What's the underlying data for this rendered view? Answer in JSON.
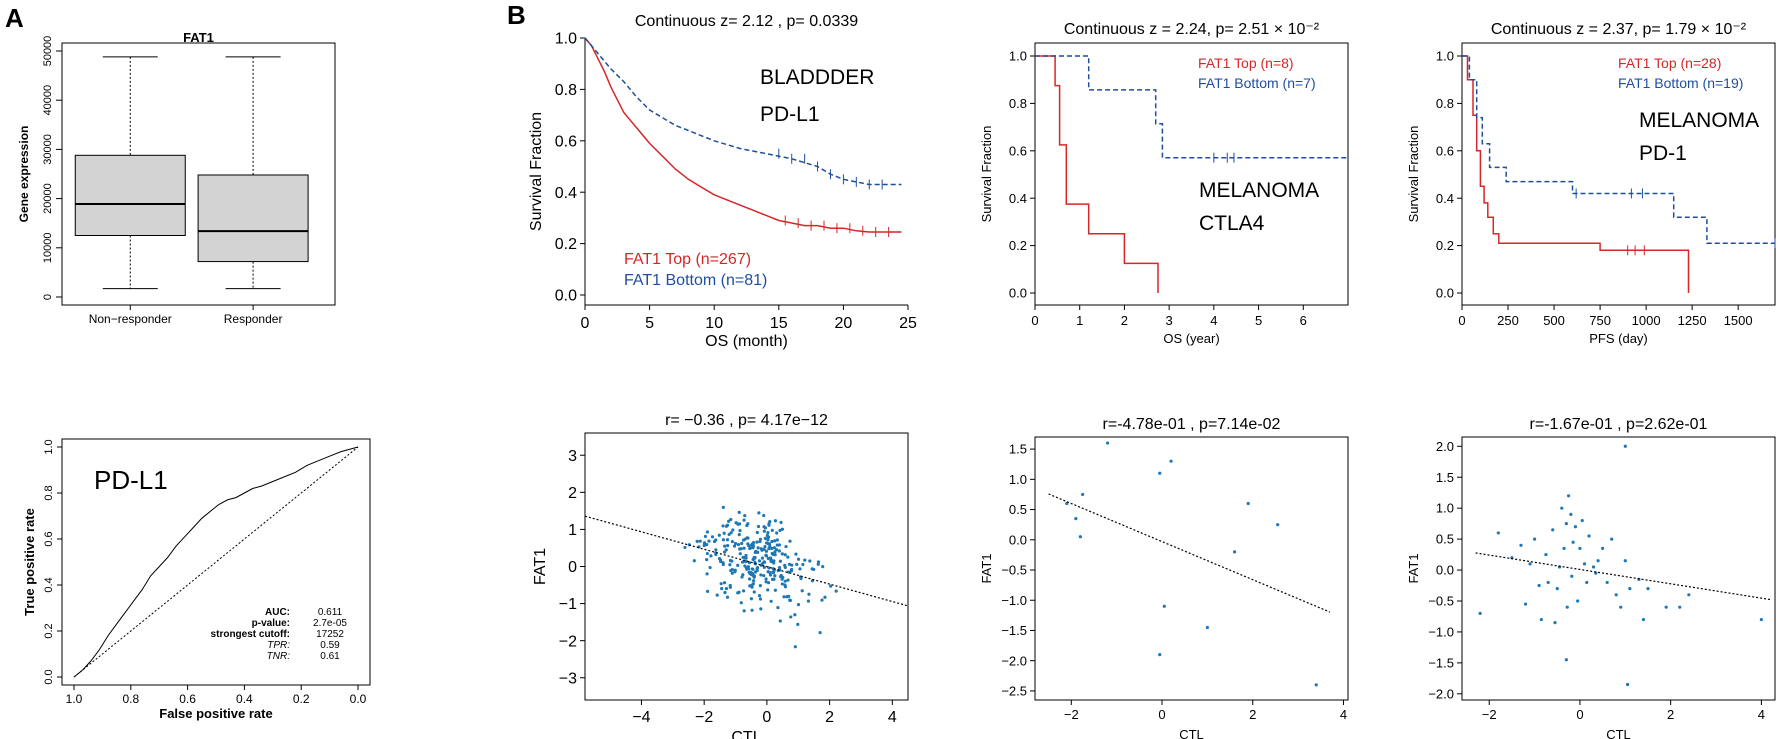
{
  "colors": {
    "red": "#d62728",
    "blue": "#1f4e9e",
    "scatter": "#1f77b4",
    "box": "#d3d3d3"
  },
  "panel_labels": {
    "a": "A",
    "b": "B"
  },
  "chart_data": [
    {
      "id": "boxplot",
      "type": "box",
      "title": "FAT1",
      "ylabel": "Gene expression",
      "ylim": [
        0,
        50000
      ],
      "yticks": [
        0,
        10000,
        20000,
        30000,
        40000,
        50000
      ],
      "categories": [
        "Non−responder",
        "Responder"
      ],
      "boxes": [
        {
          "min": 1700,
          "q1": 12500,
          "median": 18900,
          "q3": 28800,
          "max": 48800
        },
        {
          "min": 1700,
          "q1": 7200,
          "median": 13400,
          "q3": 24800,
          "max": 48800
        }
      ]
    },
    {
      "id": "roc",
      "type": "line",
      "annotation": "PD-L1",
      "xlabel": "False positive rate",
      "ylabel": "True positive rate",
      "xticks": [
        "1.0",
        "0.8",
        "0.6",
        "0.4",
        "0.2",
        "0.0"
      ],
      "yticks": [
        "0.0",
        "0.2",
        "0.4",
        "0.6",
        "0.8",
        "1.0"
      ],
      "curve": [
        [
          0,
          0
        ],
        [
          0.03,
          0.03
        ],
        [
          0.06,
          0.07
        ],
        [
          0.09,
          0.12
        ],
        [
          0.12,
          0.18
        ],
        [
          0.15,
          0.23
        ],
        [
          0.18,
          0.28
        ],
        [
          0.21,
          0.33
        ],
        [
          0.24,
          0.38
        ],
        [
          0.27,
          0.44
        ],
        [
          0.3,
          0.48
        ],
        [
          0.33,
          0.52
        ],
        [
          0.36,
          0.57
        ],
        [
          0.39,
          0.61
        ],
        [
          0.42,
          0.65
        ],
        [
          0.45,
          0.69
        ],
        [
          0.48,
          0.72
        ],
        [
          0.51,
          0.75
        ],
        [
          0.54,
          0.77
        ],
        [
          0.57,
          0.78
        ],
        [
          0.6,
          0.8
        ],
        [
          0.63,
          0.82
        ],
        [
          0.66,
          0.83
        ],
        [
          0.7,
          0.85
        ],
        [
          0.74,
          0.87
        ],
        [
          0.78,
          0.89
        ],
        [
          0.82,
          0.92
        ],
        [
          0.86,
          0.94
        ],
        [
          0.9,
          0.96
        ],
        [
          0.94,
          0.98
        ],
        [
          1,
          1
        ]
      ],
      "stats": {
        "labels": [
          "AUC:",
          "p-value:",
          "strongest cutoff:",
          "TPR:",
          "TNR:"
        ],
        "values": [
          "0.611",
          "2.7e-05",
          "17252",
          "0.59",
          "0.61"
        ]
      }
    },
    {
      "id": "km1",
      "type": "line",
      "title": "Continuous z= 2.12 , p= 0.0339",
      "xlabel": "OS (month)",
      "ylabel": "Survival Fraction",
      "xlim": [
        0,
        25
      ],
      "ylim": [
        0,
        1
      ],
      "xticks": [
        0,
        5,
        10,
        15,
        20,
        25
      ],
      "yticks": [
        "0.0",
        "0.2",
        "0.4",
        "0.6",
        "0.8",
        "1.0"
      ],
      "annotations": [
        "BLADDDER",
        "PD-L1"
      ],
      "series": [
        {
          "name": "FAT1 Top (n=267)",
          "color": "red",
          "dash": false,
          "x": [
            0,
            0.5,
            1,
            1.5,
            2,
            2.5,
            3,
            4,
            5,
            6,
            7,
            8,
            9,
            10,
            11,
            12,
            13,
            14,
            15,
            16,
            17,
            18,
            19,
            20,
            21,
            22,
            23,
            24.5
          ],
          "y": [
            1,
            0.97,
            0.92,
            0.87,
            0.81,
            0.76,
            0.71,
            0.65,
            0.59,
            0.54,
            0.49,
            0.45,
            0.42,
            0.39,
            0.37,
            0.35,
            0.33,
            0.31,
            0.29,
            0.28,
            0.27,
            0.27,
            0.26,
            0.26,
            0.25,
            0.245,
            0.245,
            0.245
          ]
        },
        {
          "name": "FAT1 Bottom (n=81)",
          "color": "blue",
          "dash": true,
          "x": [
            0,
            1,
            2,
            3,
            4,
            5,
            6,
            7,
            8,
            9,
            10,
            12,
            14,
            16,
            18,
            19,
            20,
            21,
            22,
            24.5
          ],
          "y": [
            1,
            0.94,
            0.88,
            0.83,
            0.77,
            0.72,
            0.69,
            0.66,
            0.64,
            0.62,
            0.6,
            0.57,
            0.55,
            0.53,
            0.5,
            0.47,
            0.45,
            0.44,
            0.43,
            0.43
          ]
        }
      ]
    },
    {
      "id": "km2",
      "type": "line",
      "title": "Continuous z = 2.24, p= 2.51 × 10⁻²",
      "xlabel": "OS (year)",
      "ylabel": "Survival Fraction",
      "xlim": [
        0,
        7
      ],
      "ylim": [
        0,
        1
      ],
      "xticks": [
        0,
        1,
        2,
        3,
        4,
        5,
        6
      ],
      "yticks": [
        "0.0",
        "0.2",
        "0.4",
        "0.6",
        "0.8",
        "1.0"
      ],
      "annotations": [
        "MELANOMA",
        "CTLA4"
      ],
      "series": [
        {
          "name": "FAT1 Top (n=8)",
          "color": "red",
          "dash": false,
          "x": [
            0,
            0.45,
            0.45,
            0.55,
            0.55,
            0.7,
            0.7,
            1.2,
            1.2,
            2.0,
            2.0,
            2.75,
            2.75
          ],
          "y": [
            1,
            1,
            0.875,
            0.875,
            0.625,
            0.625,
            0.375,
            0.375,
            0.25,
            0.25,
            0.125,
            0.125,
            0
          ]
        },
        {
          "name": "FAT1 Bottom (n=7)",
          "color": "blue",
          "dash": true,
          "x": [
            0,
            1.2,
            1.2,
            2.7,
            2.7,
            2.85,
            2.85,
            7
          ],
          "y": [
            1,
            1,
            0.857,
            0.857,
            0.714,
            0.714,
            0.571,
            0.571
          ]
        }
      ]
    },
    {
      "id": "km3",
      "type": "line",
      "title": "Continuous z = 2.37, p= 1.79 × 10⁻²",
      "xlabel": "PFS (day)",
      "ylabel": "Survival Fraction",
      "xlim": [
        0,
        1700
      ],
      "ylim": [
        0,
        1
      ],
      "xticks": [
        0,
        250,
        500,
        750,
        1000,
        1250,
        1500
      ],
      "yticks": [
        "0.0",
        "0.2",
        "0.4",
        "0.6",
        "0.8",
        "1.0"
      ],
      "annotations": [
        "MELANOMA",
        "PD-1"
      ],
      "series": [
        {
          "name": "FAT1 Top (n=28)",
          "color": "red",
          "dash": false,
          "x": [
            0,
            30,
            30,
            60,
            60,
            80,
            80,
            100,
            100,
            120,
            120,
            140,
            140,
            170,
            170,
            200,
            200,
            750,
            750,
            1230,
            1230
          ],
          "y": [
            1,
            1,
            0.9,
            0.9,
            0.75,
            0.75,
            0.6,
            0.6,
            0.45,
            0.45,
            0.38,
            0.38,
            0.32,
            0.32,
            0.25,
            0.25,
            0.21,
            0.21,
            0.18,
            0.18,
            0
          ]
        },
        {
          "name": "FAT1 Bottom (n=19)",
          "color": "blue",
          "dash": true,
          "x": [
            0,
            40,
            40,
            80,
            80,
            110,
            110,
            150,
            150,
            240,
            240,
            600,
            600,
            1150,
            1150,
            1330,
            1330,
            1700
          ],
          "y": [
            1,
            1,
            0.9,
            0.9,
            0.74,
            0.74,
            0.63,
            0.63,
            0.53,
            0.53,
            0.47,
            0.47,
            0.42,
            0.42,
            0.32,
            0.32,
            0.21,
            0.21
          ]
        }
      ]
    },
    {
      "id": "sc1",
      "type": "scatter",
      "title": "r= −0.36 , p= 4.17e−12",
      "xlabel": "CTL",
      "ylabel": "FAT1",
      "xlim": [
        -5.8,
        4.5
      ],
      "ylim": [
        -3.6,
        3.6
      ],
      "xticks": [
        "−4",
        "−2",
        "0",
        "2",
        "4"
      ],
      "xtick_values": [
        -4,
        -2,
        0,
        2,
        4
      ],
      "yticks": [
        "−3",
        "−2",
        "−1",
        "0",
        "1",
        "2",
        "3"
      ],
      "ytick_values": [
        -3,
        -2,
        -1,
        0,
        1,
        2,
        3
      ],
      "fit": {
        "slope": -0.235,
        "intercept": -0.005
      },
      "n_points": 300,
      "seed": 7,
      "cloud": {
        "mx": -0.3,
        "sx": 1.6,
        "my": 0.1,
        "sy": 1.0
      }
    },
    {
      "id": "sc2",
      "type": "scatter",
      "title": "r=-4.78e-01 , p=7.14e-02",
      "xlabel": "CTL",
      "ylabel": "FAT1",
      "xlim": [
        -2.8,
        4.1
      ],
      "ylim": [
        -2.65,
        1.7
      ],
      "xticks": [
        "−2",
        "0",
        "2",
        "4"
      ],
      "xtick_values": [
        -2,
        0,
        2,
        4
      ],
      "yticks": [
        "−2.5",
        "−2.0",
        "−1.5",
        "−1.0",
        "−0.5",
        "0.0",
        "0.5",
        "1.0",
        "1.5"
      ],
      "ytick_values": [
        -2.5,
        -2.0,
        -1.5,
        -1.0,
        -0.5,
        0.0,
        0.5,
        1.0,
        1.5
      ],
      "fit": {
        "slope": -0.315,
        "intercept": -0.03
      },
      "points": [
        [
          -2.1,
          0.6
        ],
        [
          -1.9,
          0.35
        ],
        [
          -1.75,
          0.75
        ],
        [
          -1.8,
          0.05
        ],
        [
          -1.2,
          1.6
        ],
        [
          -0.05,
          1.1
        ],
        [
          0.2,
          1.3
        ],
        [
          0.05,
          -1.1
        ],
        [
          -0.05,
          -1.9
        ],
        [
          1.0,
          -1.45
        ],
        [
          1.6,
          -0.2
        ],
        [
          1.9,
          0.6
        ],
        [
          2.55,
          0.25
        ],
        [
          3.4,
          -2.4
        ]
      ]
    },
    {
      "id": "sc3",
      "type": "scatter",
      "title": "r=-1.67e-01 , p=2.62e-01",
      "xlabel": "CTL",
      "ylabel": "FAT1",
      "xlim": [
        -2.6,
        4.3
      ],
      "ylim": [
        -2.1,
        2.15
      ],
      "xticks": [
        "−2",
        "0",
        "2",
        "4"
      ],
      "xtick_values": [
        -2,
        0,
        2,
        4
      ],
      "yticks": [
        "−2.0",
        "−1.5",
        "−1.0",
        "−0.5",
        "0.0",
        "0.5",
        "1.0",
        "1.5",
        "2.0"
      ],
      "ytick_values": [
        -2.0,
        -1.5,
        -1.0,
        -0.5,
        0.0,
        0.5,
        1.0,
        1.5,
        2.0
      ],
      "fit": {
        "slope": -0.116,
        "intercept": 0.01
      },
      "points": [
        [
          -2.2,
          -0.7
        ],
        [
          -1.8,
          0.6
        ],
        [
          -1.5,
          0.2
        ],
        [
          -1.3,
          0.4
        ],
        [
          -1.2,
          -0.55
        ],
        [
          -1.1,
          0.1
        ],
        [
          -1.0,
          0.5
        ],
        [
          -0.9,
          -0.25
        ],
        [
          -0.85,
          -0.8
        ],
        [
          -0.75,
          0.25
        ],
        [
          -0.7,
          -0.2
        ],
        [
          -0.6,
          0.65
        ],
        [
          -0.55,
          -0.85
        ],
        [
          -0.5,
          -0.3
        ],
        [
          -0.45,
          0.05
        ],
        [
          -0.4,
          1.0
        ],
        [
          -0.35,
          0.35
        ],
        [
          -0.3,
          0.75
        ],
        [
          -0.28,
          -0.6
        ],
        [
          -0.25,
          1.2
        ],
        [
          -0.2,
          0.9
        ],
        [
          -0.18,
          -0.1
        ],
        [
          -0.15,
          0.45
        ],
        [
          -0.1,
          0.7
        ],
        [
          -0.05,
          -0.5
        ],
        [
          0,
          0.35
        ],
        [
          0.05,
          0.8
        ],
        [
          0.1,
          0.1
        ],
        [
          0.15,
          -0.2
        ],
        [
          0.2,
          0.55
        ],
        [
          0.3,
          0.05
        ],
        [
          0.35,
          -0.05
        ],
        [
          0.4,
          0.15
        ],
        [
          0.5,
          0.35
        ],
        [
          0.6,
          -0.2
        ],
        [
          0.7,
          0.5
        ],
        [
          0.8,
          -0.4
        ],
        [
          0.9,
          -0.6
        ],
        [
          1.0,
          2.0
        ],
        [
          1.0,
          0.15
        ],
        [
          1.05,
          -1.85
        ],
        [
          1.1,
          -0.3
        ],
        [
          1.3,
          -0.15
        ],
        [
          1.4,
          -0.8
        ],
        [
          1.5,
          -0.3
        ],
        [
          1.9,
          -0.6
        ],
        [
          2.2,
          -0.6
        ],
        [
          2.4,
          -0.4
        ],
        [
          4.0,
          -0.8
        ],
        [
          -0.3,
          -1.45
        ]
      ]
    }
  ]
}
